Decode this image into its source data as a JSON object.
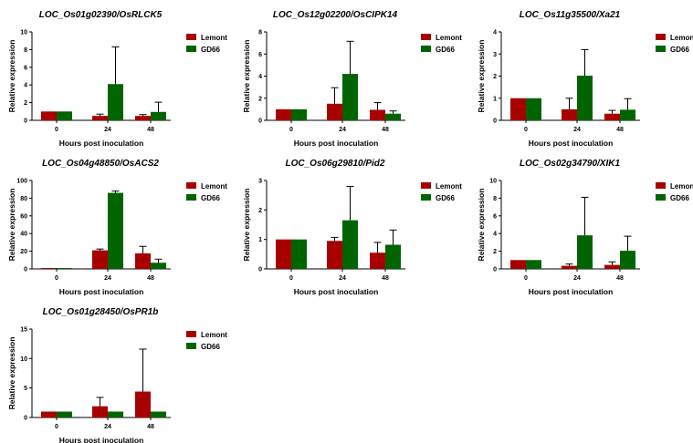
{
  "colors": {
    "lemont": "#a80000",
    "gd66": "#006400"
  },
  "chart_data": [
    {
      "type": "bar",
      "title": "LOC_Os01g02390/OsRLCK5",
      "xlabel": "Hours post inoculation",
      "ylabel": "Relative expression",
      "categories": [
        "0",
        "24",
        "48"
      ],
      "ylim": [
        0,
        10
      ],
      "yticks": [
        0,
        2,
        4,
        6,
        8,
        10
      ],
      "series": [
        {
          "name": "Lemont",
          "values": [
            1.0,
            0.5,
            0.5
          ],
          "errors": [
            0,
            0.2,
            0.15
          ]
        },
        {
          "name": "GD66",
          "values": [
            1.0,
            4.1,
            0.95
          ],
          "errors": [
            0,
            4.2,
            1.1
          ]
        }
      ]
    },
    {
      "type": "bar",
      "title": "LOC_Os12g02200/OsCIPK14",
      "xlabel": "Hours post inoculation",
      "ylabel": "Relative expression",
      "categories": [
        "0",
        "24",
        "48"
      ],
      "ylim": [
        0,
        8
      ],
      "yticks": [
        0,
        2,
        4,
        6,
        8
      ],
      "series": [
        {
          "name": "Lemont",
          "values": [
            1.0,
            1.5,
            0.95
          ],
          "errors": [
            0,
            1.45,
            0.65
          ]
        },
        {
          "name": "GD66",
          "values": [
            1.0,
            4.2,
            0.6
          ],
          "errors": [
            0,
            2.95,
            0.25
          ]
        }
      ]
    },
    {
      "type": "bar",
      "title": "LOC_Os11g35500/Xa21",
      "xlabel": "Hours post inoculation",
      "ylabel": "Relative expression",
      "categories": [
        "0",
        "24",
        "48"
      ],
      "ylim": [
        0,
        4
      ],
      "yticks": [
        0,
        1,
        2,
        3,
        4
      ],
      "series": [
        {
          "name": "Lemont",
          "values": [
            1.0,
            0.5,
            0.3
          ],
          "errors": [
            0,
            0.5,
            0.15
          ]
        },
        {
          "name": "GD66",
          "values": [
            1.0,
            2.02,
            0.48
          ],
          "errors": [
            0,
            1.18,
            0.5
          ]
        }
      ]
    },
    {
      "type": "bar",
      "title": "LOC_Os04g48850/OsACS2",
      "xlabel": "Hours post inoculation",
      "ylabel": "Relative expression",
      "categories": [
        "0",
        "24",
        "48"
      ],
      "ylim": [
        0,
        100
      ],
      "yticks": [
        0,
        20,
        40,
        60,
        80,
        100
      ],
      "series": [
        {
          "name": "Lemont",
          "values": [
            1.0,
            21,
            17.5
          ],
          "errors": [
            0,
            1.5,
            8
          ]
        },
        {
          "name": "GD66",
          "values": [
            1.0,
            86,
            7
          ],
          "errors": [
            0,
            2,
            4
          ]
        }
      ]
    },
    {
      "type": "bar",
      "title": "LOC_Os06g29810/Pid2",
      "xlabel": "Hours post inoculation",
      "ylabel": "Relative expression",
      "categories": [
        "0",
        "24",
        "48"
      ],
      "ylim": [
        0,
        3
      ],
      "yticks": [
        0,
        1,
        2,
        3
      ],
      "series": [
        {
          "name": "Lemont",
          "values": [
            1.0,
            0.95,
            0.55
          ],
          "errors": [
            0,
            0.12,
            0.35
          ]
        },
        {
          "name": "GD66",
          "values": [
            1.0,
            1.65,
            0.82
          ],
          "errors": [
            0,
            1.15,
            0.5
          ]
        }
      ]
    },
    {
      "type": "bar",
      "title": "LOC_Os02g34790/XIK1",
      "xlabel": "Hours post inoculation",
      "ylabel": "Relative expression",
      "categories": [
        "0",
        "24",
        "48"
      ],
      "ylim": [
        0,
        10
      ],
      "yticks": [
        0,
        2,
        4,
        6,
        8,
        10
      ],
      "series": [
        {
          "name": "Lemont",
          "values": [
            1.0,
            0.35,
            0.45
          ],
          "errors": [
            0,
            0.2,
            0.35
          ]
        },
        {
          "name": "GD66",
          "values": [
            1.0,
            3.8,
            2.05
          ],
          "errors": [
            0,
            4.3,
            1.65
          ]
        }
      ]
    },
    {
      "type": "bar",
      "title": "LOC_Os01g28450/OsPR1b",
      "xlabel": "Hours post inoculation",
      "ylabel": "Relative expression",
      "categories": [
        "0",
        "24",
        "48"
      ],
      "ylim": [
        0,
        15
      ],
      "yticks": [
        0,
        5,
        10,
        15
      ],
      "series": [
        {
          "name": "Lemont",
          "values": [
            1.0,
            1.9,
            4.4
          ],
          "errors": [
            0,
            1.5,
            7.2
          ]
        },
        {
          "name": "GD66",
          "values": [
            1.0,
            1.0,
            1.0
          ],
          "errors": [
            0,
            0,
            0
          ]
        }
      ]
    }
  ]
}
